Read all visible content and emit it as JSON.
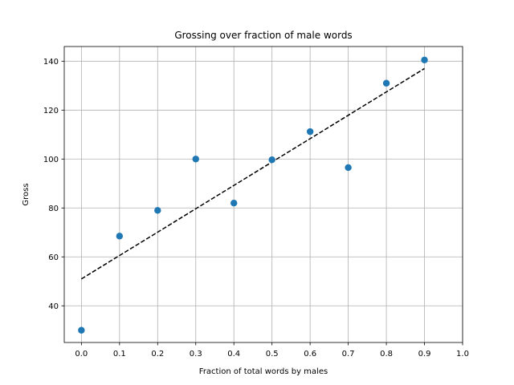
{
  "chart_data": {
    "type": "scatter",
    "title": "Grossing over fraction of male words",
    "xlabel": "Fraction of total words by males",
    "ylabel": "Gross",
    "xlim": [
      -0.045,
      1.0
    ],
    "ylim": [
      25,
      146
    ],
    "x_ticks": [
      "0.0",
      "0.1",
      "0.2",
      "0.3",
      "0.4",
      "0.5",
      "0.6",
      "0.7",
      "0.8",
      "0.9",
      "1.0"
    ],
    "y_ticks": [
      "40",
      "60",
      "80",
      "100",
      "120",
      "140"
    ],
    "grid": true,
    "legend": "none",
    "series": [
      {
        "kind": "points",
        "color": "#1f77b4",
        "x": [
          0.0,
          0.1,
          0.2,
          0.3,
          0.4,
          0.5,
          0.6,
          0.7,
          0.8,
          0.9
        ],
        "y": [
          30.0,
          68.5,
          79.0,
          100.0,
          82.0,
          99.7,
          111.2,
          96.5,
          131.0,
          140.5
        ]
      },
      {
        "kind": "trend-line",
        "style": "dashed",
        "color": "#000000",
        "x": [
          0.0,
          0.9
        ],
        "y": [
          51.0,
          137.0
        ]
      }
    ]
  }
}
